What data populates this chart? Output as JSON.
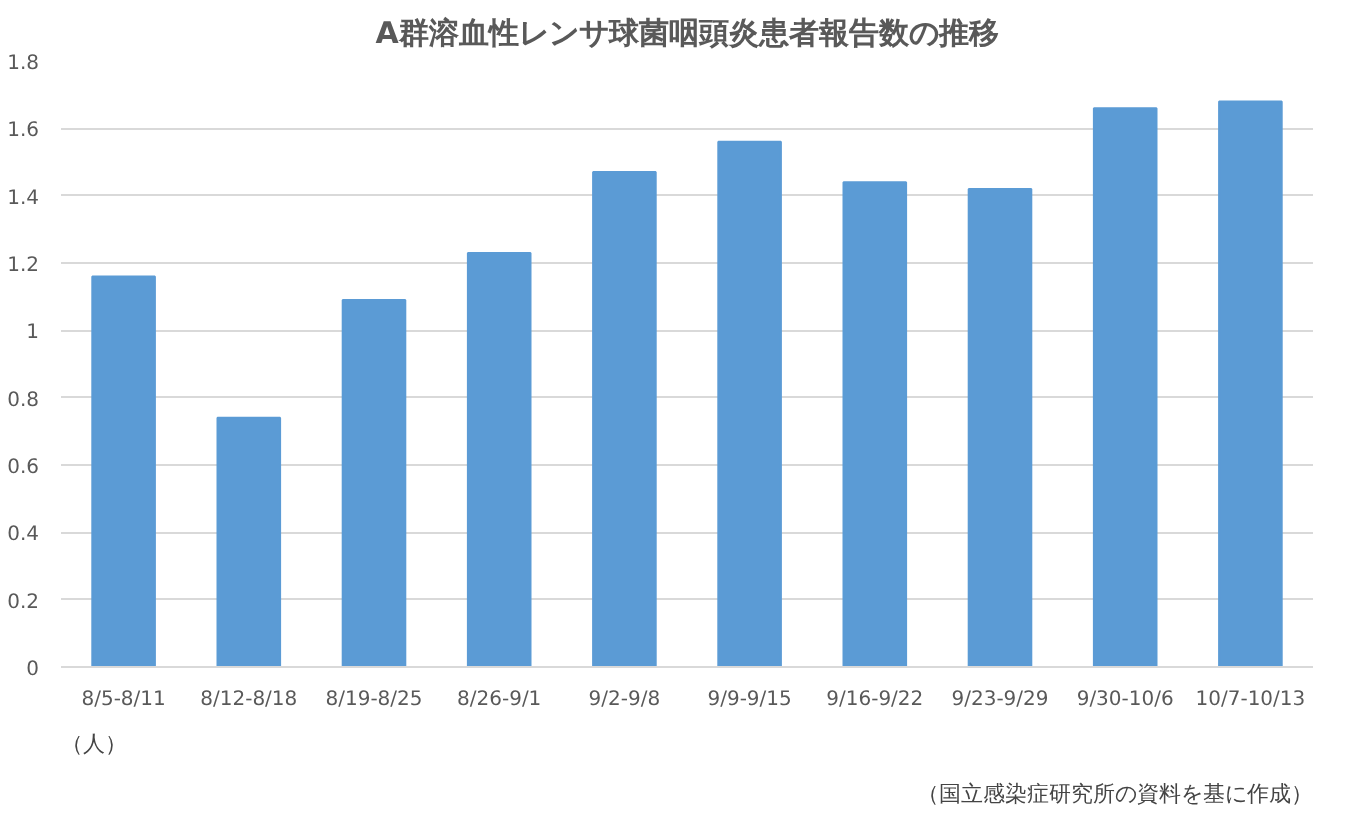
{
  "chart_data": {
    "type": "bar",
    "title": "A群溶血性レンサ球菌咽頭炎患者報告数の推移",
    "categories": [
      "8/5-8/11",
      "8/12-8/18",
      "8/19-8/25",
      "8/26-9/1",
      "9/2-9/8",
      "9/9-9/15",
      "9/16-9/22",
      "9/23-9/29",
      "9/30-10/6",
      "10/7-10/13"
    ],
    "values": [
      1.16,
      0.74,
      1.09,
      1.23,
      1.47,
      1.56,
      1.44,
      1.42,
      1.66,
      1.68
    ],
    "color": "#5b9bd5",
    "ylim": [
      0,
      1.8
    ],
    "yticks": [
      0,
      0.2,
      0.4,
      0.6,
      0.8,
      1,
      1.2,
      1.4,
      1.6,
      1.8
    ],
    "grid": "y",
    "annotations": [
      "（人）",
      "（国立感染症研究所の資料を基に作成）"
    ]
  }
}
